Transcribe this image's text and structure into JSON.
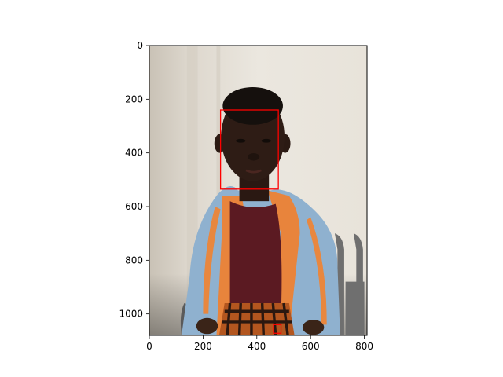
{
  "chart_data": {
    "type": "image",
    "title": "",
    "xlabel": "",
    "ylabel": "",
    "xlim": [
      0,
      810
    ],
    "ylim": [
      1080,
      0
    ],
    "x_ticks": [
      0,
      200,
      400,
      600,
      800
    ],
    "y_ticks": [
      0,
      200,
      400,
      600,
      800,
      1000
    ],
    "grid": false,
    "legend": "none",
    "image_subject": "photo of a child in an orange and light-blue jacket seated against a white wall",
    "annotations": [
      {
        "kind": "rectangle",
        "x0": 265,
        "y0": 240,
        "x1": 480,
        "y1": 535,
        "color": "#ff0000"
      },
      {
        "kind": "rectangle",
        "x0": 462,
        "y0": 1040,
        "x1": 490,
        "y1": 1072,
        "color": "#ff0000"
      }
    ]
  }
}
